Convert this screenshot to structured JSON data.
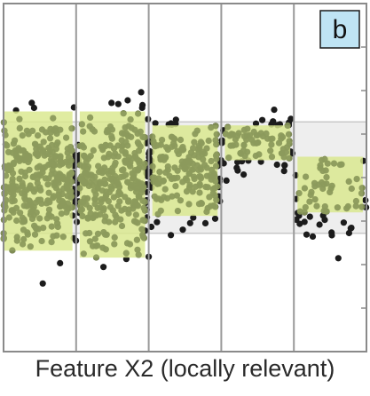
{
  "chart_data": {
    "type": "scatter",
    "panel_label": "b",
    "xlabel": "Feature X2 (locally relevant)",
    "ylabel": "",
    "xlim": [
      0,
      5
    ],
    "ylim": [
      0,
      1
    ],
    "grid": true,
    "bins": [
      0,
      1,
      2,
      3,
      4,
      5
    ],
    "global_band": {
      "lower": 0.34,
      "upper": 0.66
    },
    "segments": [
      {
        "x0": 0.0,
        "x1": 0.95,
        "lower": 0.29,
        "upper": 0.69
      },
      {
        "x0": 1.05,
        "x1": 1.95,
        "lower": 0.27,
        "upper": 0.69
      },
      {
        "x0": 2.05,
        "x1": 2.95,
        "lower": 0.39,
        "upper": 0.65
      },
      {
        "x0": 3.05,
        "x1": 3.95,
        "lower": 0.55,
        "upper": 0.65
      },
      {
        "x0": 4.05,
        "x1": 4.95,
        "lower": 0.4,
        "upper": 0.56
      }
    ],
    "clouds": [
      {
        "x0": 0.0,
        "x1": 1.0,
        "center": 0.49,
        "spread": 0.16,
        "n": 320
      },
      {
        "x0": 1.0,
        "x1": 2.0,
        "center": 0.49,
        "spread": 0.16,
        "n": 320
      },
      {
        "x0": 2.0,
        "x1": 3.0,
        "center": 0.52,
        "spread": 0.12,
        "n": 200
      },
      {
        "x0": 3.0,
        "x1": 4.0,
        "center": 0.6,
        "spread": 0.07,
        "n": 90
      },
      {
        "x0": 4.0,
        "x1": 5.0,
        "center": 0.46,
        "spread": 0.1,
        "n": 70
      }
    ],
    "colors": {
      "point": "#1c1c1c",
      "point_in_segment": "#8c9a5c",
      "segment_fill": "#d9e88c",
      "band_fill": "#eeeeee",
      "band_edge": "#c8c8c8",
      "grid": "#9a9a9a",
      "frame": "#8a8a8a",
      "label_box": "#bfe4f4"
    }
  }
}
